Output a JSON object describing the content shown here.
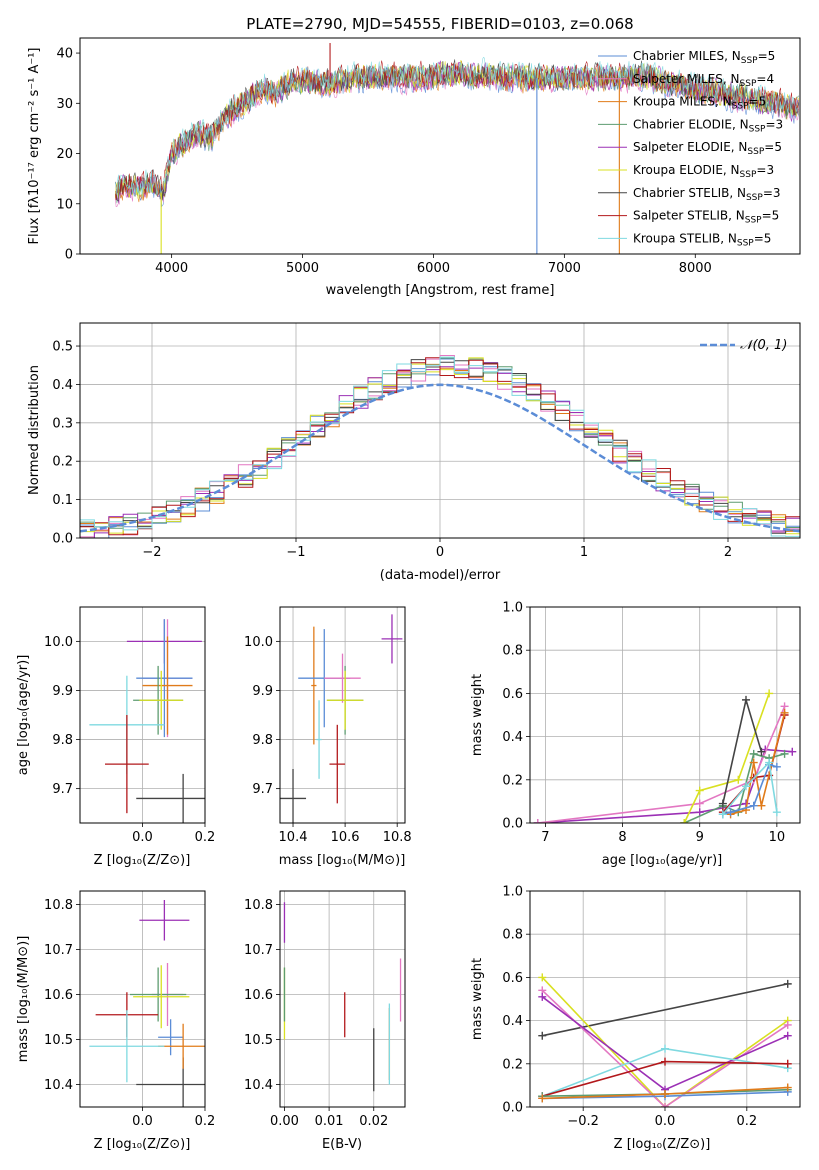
{
  "chart_data": [
    {
      "id": "spectrum",
      "type": "line",
      "title": "PLATE=2790, MJD=54555, FIBERID=0103, z=0.068",
      "xlabel": "wavelength [Angstrom, rest frame]",
      "ylabel": "Flux [fλ10⁻¹⁷ erg cm⁻² s⁻¹ A⁻¹]",
      "xlim": [
        3300,
        8800
      ],
      "ylim": [
        0,
        43
      ],
      "xticks": [
        4000,
        5000,
        6000,
        7000,
        8000
      ],
      "yticks": [
        0,
        10,
        20,
        30,
        40
      ],
      "grid": false,
      "legend_position": "top-right",
      "continuum": {
        "x": [
          3570,
          3650,
          3750,
          3850,
          3930,
          4000,
          4100,
          4200,
          4300,
          4400,
          4500,
          4600,
          4700,
          4800,
          4900,
          5000,
          5200,
          5400,
          5600,
          5800,
          6000,
          6200,
          6400,
          6600,
          6800,
          7000,
          7200,
          7400,
          7600,
          7800,
          8000,
          8200,
          8400,
          8600,
          8790
        ],
        "y": [
          12,
          14,
          13,
          14,
          12,
          20,
          22,
          24,
          23,
          27,
          29,
          31,
          33,
          32,
          34,
          34.5,
          34,
          35,
          35.5,
          35,
          35.5,
          36,
          35.5,
          35,
          35,
          35,
          35,
          35,
          35.5,
          34,
          33,
          32,
          31,
          30,
          29
        ]
      },
      "spikes": [
        {
          "x": 3920,
          "y": 0
        },
        {
          "x": 5210,
          "y": 42
        },
        {
          "x": 6790,
          "y": 0
        },
        {
          "x": 7420,
          "y": 0
        }
      ],
      "series": [
        {
          "name": "Chabrier MILES, N_SSP=5",
          "name_main": "Chabrier MILES, N",
          "name_sub": "SSP",
          "name_end": "=5",
          "color": "#5b8cd6"
        },
        {
          "name": "Salpeter MILES, N_SSP=4",
          "name_main": "Salpeter MILES, N",
          "name_sub": "SSP",
          "name_end": "=4",
          "color": "#e377c2"
        },
        {
          "name": "Kroupa MILES, N_SSP=5",
          "name_main": "Kroupa MILES, N",
          "name_sub": "SSP",
          "name_end": "=5",
          "color": "#e07b1a"
        },
        {
          "name": "Chabrier ELODIE, N_SSP=3",
          "name_main": "Chabrier ELODIE, N",
          "name_sub": "SSP",
          "name_end": "=3",
          "color": "#5d9c70"
        },
        {
          "name": "Salpeter ELODIE, N_SSP=5",
          "name_main": "Salpeter ELODIE, N",
          "name_sub": "SSP",
          "name_end": "=5",
          "color": "#9b30b5"
        },
        {
          "name": "Kroupa ELODIE, N_SSP=3",
          "name_main": "Kroupa ELODIE, N",
          "name_sub": "SSP",
          "name_end": "=3",
          "color": "#d9e021"
        },
        {
          "name": "Chabrier STELIB, N_SSP=3",
          "name_main": "Chabrier STELIB, N",
          "name_sub": "SSP",
          "name_end": "=3",
          "color": "#444444"
        },
        {
          "name": "Salpeter STELIB, N_SSP=5",
          "name_main": "Salpeter STELIB, N",
          "name_sub": "SSP",
          "name_end": "=5",
          "color": "#b2181b"
        },
        {
          "name": "Kroupa STELIB, N_SSP=5",
          "name_main": "Kroupa STELIB, N",
          "name_sub": "SSP",
          "name_end": "=5",
          "color": "#7fd9e0"
        }
      ]
    },
    {
      "id": "residuals",
      "type": "line",
      "xlabel": "(data-model)/error",
      "ylabel": "Normed distribution",
      "xlim": [
        -2.5,
        2.5
      ],
      "ylim": [
        0,
        0.56
      ],
      "xticks": [
        -2,
        -1,
        0,
        1,
        2
      ],
      "xtick_labels": [
        "−2",
        "−1",
        "0",
        "1",
        "2"
      ],
      "yticks": [
        0.0,
        0.1,
        0.2,
        0.3,
        0.4,
        0.5
      ],
      "ytick_labels": [
        "0.0",
        "0.1",
        "0.2",
        "0.3",
        "0.4",
        "0.5"
      ],
      "grid": true,
      "legend_position": "top-right",
      "gaussian_label": "𝒩(0, 1)",
      "gaussian_color": "#5b8cd6",
      "bin_width": 0.1,
      "histogram_series_colors": [
        "#5b8cd6",
        "#e377c2",
        "#e07b1a",
        "#5d9c70",
        "#9b30b5",
        "#d9e021",
        "#444444",
        "#b2181b",
        "#7fd9e0"
      ]
    },
    {
      "id": "age-vs-Z",
      "type": "scatter",
      "xlabel": "Z [log₁₀(Z/Z⊙)]",
      "ylabel": "age  [log₁₀(age/yr)]",
      "xlim": [
        -0.2,
        0.2
      ],
      "ylim": [
        9.63,
        10.07
      ],
      "xticks": [
        0.0,
        0.2
      ],
      "xtick_labels": [
        "0.0",
        "0.2"
      ],
      "yticks": [
        9.7,
        9.8,
        9.9,
        10.0
      ],
      "ytick_labels": [
        "9.7",
        "9.8",
        "9.9",
        "10.0"
      ],
      "grid": true,
      "points": [
        {
          "color": "#9b30b5",
          "x": 0.07,
          "xerr": 0.12,
          "y": 10.0,
          "yerr": 0.045
        },
        {
          "color": "#e377c2",
          "x": 0.08,
          "xerr": 0.08,
          "y": 9.925,
          "yerr": 0.12
        },
        {
          "color": "#5b8cd6",
          "x": 0.07,
          "xerr": 0.09,
          "y": 9.925,
          "yerr": 0.12
        },
        {
          "color": "#e07b1a",
          "x": 0.08,
          "xerr": 0.08,
          "y": 9.91,
          "yerr": 0.1
        },
        {
          "color": "#5d9c70",
          "x": 0.05,
          "xerr": 0.08,
          "y": 9.88,
          "yerr": 0.07
        },
        {
          "color": "#d9e021",
          "x": 0.06,
          "xerr": 0.07,
          "y": 9.88,
          "yerr": 0.06
        },
        {
          "color": "#444444",
          "x": 0.13,
          "xerr": 0.15,
          "y": 9.68,
          "yerr": 0.05
        },
        {
          "color": "#7fd9e0",
          "x": -0.05,
          "xerr": 0.12,
          "y": 9.83,
          "yerr": 0.1
        },
        {
          "color": "#b2181b",
          "x": -0.05,
          "xerr": 0.07,
          "y": 9.75,
          "yerr": 0.1
        }
      ]
    },
    {
      "id": "age-vs-mass",
      "type": "scatter",
      "xlabel": "mass [log₁₀(M/M⊙)]",
      "xlim": [
        10.35,
        10.83
      ],
      "ylim": [
        9.63,
        10.07
      ],
      "xticks": [
        10.4,
        10.6,
        10.8
      ],
      "xtick_labels": [
        "10.4",
        "10.6",
        "10.8"
      ],
      "yticks": [
        9.7,
        9.8,
        9.9,
        10.0
      ],
      "ytick_labels": [
        "9.7",
        "9.8",
        "9.9",
        "10.0"
      ],
      "grid": true,
      "points": [
        {
          "color": "#9b30b5",
          "x": 10.78,
          "xerr": 0.04,
          "y": 10.005,
          "yerr": 0.05
        },
        {
          "color": "#e07b1a",
          "x": 10.48,
          "xerr": 0.01,
          "y": 9.91,
          "yerr": 0.12
        },
        {
          "color": "#5b8cd6",
          "x": 10.52,
          "xerr": 0.1,
          "y": 9.925,
          "yerr": 0.1
        },
        {
          "color": "#e377c2",
          "x": 10.59,
          "xerr": 0.07,
          "y": 9.925,
          "yerr": 0.05
        },
        {
          "color": "#5d9c70",
          "x": 10.6,
          "xerr": 0.07,
          "y": 9.88,
          "yerr": 0.07
        },
        {
          "color": "#d9e021",
          "x": 10.6,
          "xerr": 0.07,
          "y": 9.88,
          "yerr": 0.06
        },
        {
          "color": "#444444",
          "x": 10.4,
          "xerr": 0.05,
          "y": 9.68,
          "yerr": 0.06
        },
        {
          "color": "#7fd9e0",
          "x": 10.5,
          "xerr": 0.01,
          "y": 9.8,
          "yerr": 0.08
        },
        {
          "color": "#b2181b",
          "x": 10.57,
          "xerr": 0.03,
          "y": 9.75,
          "yerr": 0.08
        }
      ]
    },
    {
      "id": "weight-vs-age",
      "type": "line",
      "xlabel": "age  [log₁₀(age/yr)]",
      "ylabel": "mass weight",
      "xlim": [
        6.8,
        10.3
      ],
      "ylim": [
        0,
        1
      ],
      "xticks": [
        7,
        8,
        9,
        10
      ],
      "xtick_labels": [
        "7",
        "8",
        "9",
        "10"
      ],
      "yticks": [
        0.0,
        0.2,
        0.4,
        0.6,
        0.8,
        1.0
      ],
      "ytick_labels": [
        "0.0",
        "0.2",
        "0.4",
        "0.6",
        "0.8",
        "1.0"
      ],
      "grid": true,
      "series": [
        {
          "color": "#9b30b5",
          "x": [
            6.9,
            9.0,
            9.6,
            9.85,
            10.2
          ],
          "y": [
            0.0,
            0.05,
            0.09,
            0.34,
            0.33
          ]
        },
        {
          "color": "#e377c2",
          "x": [
            6.9,
            9.0,
            9.7,
            10.1
          ],
          "y": [
            0.0,
            0.09,
            0.2,
            0.54
          ]
        },
        {
          "color": "#5d9c70",
          "x": [
            8.8,
            9.3,
            9.5,
            9.7,
            9.9,
            10.1
          ],
          "y": [
            0.0,
            0.08,
            0.05,
            0.32,
            0.3,
            0.32
          ]
        },
        {
          "color": "#d9e021",
          "x": [
            8.8,
            9.0,
            9.5,
            9.9
          ],
          "y": [
            0.0,
            0.15,
            0.2,
            0.6
          ]
        },
        {
          "color": "#444444",
          "x": [
            9.3,
            9.6,
            9.8
          ],
          "y": [
            0.09,
            0.57,
            0.33
          ]
        },
        {
          "color": "#b2181b",
          "x": [
            9.3,
            9.7,
            9.9,
            10.1
          ],
          "y": [
            0.05,
            0.21,
            0.22,
            0.5
          ]
        },
        {
          "color": "#e07b1a",
          "x": [
            9.4,
            9.6,
            9.7,
            9.8,
            10.1
          ],
          "y": [
            0.04,
            0.06,
            0.28,
            0.08,
            0.51
          ]
        },
        {
          "color": "#5b8cd6",
          "x": [
            9.3,
            9.4,
            9.7,
            9.9,
            10.0
          ],
          "y": [
            0.04,
            0.05,
            0.08,
            0.27,
            0.26
          ]
        },
        {
          "color": "#7fd9e0",
          "x": [
            9.3,
            9.6,
            9.9,
            10.0
          ],
          "y": [
            0.04,
            0.17,
            0.28,
            0.05
          ]
        }
      ]
    },
    {
      "id": "mass-vs-Z",
      "type": "scatter",
      "xlabel": "Z [log₁₀(Z/Z⊙)]",
      "ylabel": "mass [log₁₀(M/M⊙)]",
      "xlim": [
        -0.2,
        0.2
      ],
      "ylim": [
        10.35,
        10.83
      ],
      "xticks": [
        0.0,
        0.2
      ],
      "xtick_labels": [
        "0.0",
        "0.2"
      ],
      "yticks": [
        10.4,
        10.5,
        10.6,
        10.7,
        10.8
      ],
      "ytick_labels": [
        "10.4",
        "10.5",
        "10.6",
        "10.7",
        "10.8"
      ],
      "grid": true,
      "points": [
        {
          "color": "#9b30b5",
          "x": 0.07,
          "xerr": 0.08,
          "y": 10.765,
          "yerr": 0.045
        },
        {
          "color": "#e377c2",
          "x": 0.08,
          "xerr": 0.05,
          "y": 10.6,
          "yerr": 0.07
        },
        {
          "color": "#5d9c70",
          "x": 0.05,
          "xerr": 0.09,
          "y": 10.6,
          "yerr": 0.06
        },
        {
          "color": "#d9e021",
          "x": 0.06,
          "xerr": 0.09,
          "y": 10.595,
          "yerr": 0.07
        },
        {
          "color": "#444444",
          "x": 0.13,
          "xerr": 0.15,
          "y": 10.4,
          "yerr": 0.06
        },
        {
          "color": "#b2181b",
          "x": -0.05,
          "xerr": 0.1,
          "y": 10.555,
          "yerr": 0.05
        },
        {
          "color": "#5b8cd6",
          "x": 0.09,
          "xerr": 0.04,
          "y": 10.505,
          "yerr": 0.04
        },
        {
          "color": "#e07b1a",
          "x": 0.13,
          "xerr": 0.08,
          "y": 10.485,
          "yerr": 0.05
        },
        {
          "color": "#7fd9e0",
          "x": -0.05,
          "xerr": 0.12,
          "y": 10.485,
          "yerr": 0.08
        }
      ]
    },
    {
      "id": "mass-vs-ebv",
      "type": "scatter",
      "xlabel": "E(B-V)",
      "xlim": [
        -0.001,
        0.027
      ],
      "ylim": [
        10.35,
        10.83
      ],
      "xticks": [
        0.0,
        0.01,
        0.02
      ],
      "xtick_labels": [
        "0.00",
        "0.01",
        "0.02"
      ],
      "yticks": [
        10.4,
        10.5,
        10.6,
        10.7,
        10.8
      ],
      "ytick_labels": [
        "10.4",
        "10.5",
        "10.6",
        "10.7",
        "10.8"
      ],
      "grid": true,
      "points": [
        {
          "color": "#9b30b5",
          "x": 0.0,
          "y": 10.76,
          "yerr": 0.045
        },
        {
          "color": "#d9e021",
          "x": 0.0,
          "y": 10.58,
          "yerr": 0.08
        },
        {
          "color": "#5d9c70",
          "x": 0.0,
          "y": 10.6,
          "yerr": 0.06
        },
        {
          "color": "#b2181b",
          "x": 0.0135,
          "y": 10.555,
          "yerr": 0.05
        },
        {
          "color": "#444444",
          "x": 0.02,
          "y": 10.455,
          "yerr": 0.07
        },
        {
          "color": "#e07b1a",
          "x": 0.0235,
          "y": 10.49,
          "yerr": 0.08
        },
        {
          "color": "#7fd9e0",
          "x": 0.0235,
          "y": 10.49,
          "yerr": 0.09
        },
        {
          "color": "#e377c2",
          "x": 0.026,
          "y": 10.61,
          "yerr": 0.07
        }
      ]
    },
    {
      "id": "weight-vs-Z",
      "type": "line",
      "xlabel": "Z [log₁₀(Z/Z⊙)]",
      "ylabel": "mass weight",
      "xlim": [
        -0.33,
        0.33
      ],
      "ylim": [
        0,
        1
      ],
      "xticks": [
        -0.2,
        0.0,
        0.2
      ],
      "xtick_labels": [
        "−0.2",
        "0.0",
        "0.2"
      ],
      "yticks": [
        0.0,
        0.2,
        0.4,
        0.6,
        0.8,
        1.0
      ],
      "ytick_labels": [
        "0.0",
        "0.2",
        "0.4",
        "0.6",
        "0.8",
        "1.0"
      ],
      "grid": true,
      "series": [
        {
          "color": "#444444",
          "x": [
            -0.3,
            0.3
          ],
          "y": [
            0.33,
            0.57
          ]
        },
        {
          "color": "#d9e021",
          "x": [
            -0.3,
            0.0,
            0.3
          ],
          "y": [
            0.6,
            0.0,
            0.4
          ]
        },
        {
          "color": "#e377c2",
          "x": [
            -0.3,
            0.0,
            0.3
          ],
          "y": [
            0.54,
            0.0,
            0.38
          ]
        },
        {
          "color": "#9b30b5",
          "x": [
            -0.3,
            0.0,
            0.3
          ],
          "y": [
            0.51,
            0.08,
            0.33
          ]
        },
        {
          "color": "#7fd9e0",
          "x": [
            -0.3,
            0.0,
            0.3
          ],
          "y": [
            0.05,
            0.27,
            0.18
          ]
        },
        {
          "color": "#b2181b",
          "x": [
            -0.3,
            0.0,
            0.3
          ],
          "y": [
            0.05,
            0.21,
            0.2
          ]
        },
        {
          "color": "#5d9c70",
          "x": [
            -0.3,
            0.0,
            0.3
          ],
          "y": [
            0.05,
            0.06,
            0.08
          ]
        },
        {
          "color": "#5b8cd6",
          "x": [
            -0.3,
            0.0,
            0.3
          ],
          "y": [
            0.04,
            0.05,
            0.07
          ]
        },
        {
          "color": "#e07b1a",
          "x": [
            -0.3,
            0.0,
            0.3
          ],
          "y": [
            0.04,
            0.06,
            0.09
          ]
        }
      ]
    }
  ]
}
